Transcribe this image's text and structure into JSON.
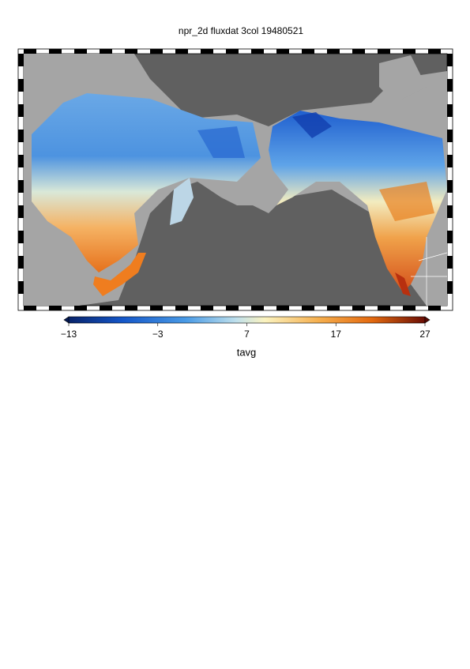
{
  "title": "npr_2d fluxdat 3col 19480521",
  "colorbar": {
    "label": "tavg",
    "lim": [
      -13,
      27
    ],
    "ticks": [
      {
        "value": -13,
        "label": "−13"
      },
      {
        "value": -3,
        "label": "−3"
      },
      7,
      17,
      27
    ]
  }
}
